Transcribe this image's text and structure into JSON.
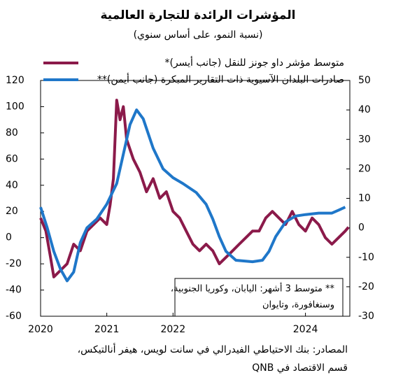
{
  "chart_data": {
    "type": "line",
    "title": "المؤشرات الرائدة للتجارة العالمية",
    "subtitle": "(نسبة النمو، على أساس سنوي)",
    "note": [
      "** متوسط 3 أشهر: اليابان، وكوريا الجنوبية،",
      "وسنغافورة، وتايوان"
    ],
    "source": [
      "المصادر: بنك الاحتياطي الفيدرالي في سانت لويس، هيفر أنالتيكس،",
      "قسم الاقتصاد في QNB"
    ],
    "xlim": [
      2020,
      2024.67
    ],
    "xticks": [
      2020,
      2021,
      2022,
      2024
    ],
    "ylim": [
      -60,
      120
    ],
    "yticks": [
      -60,
      -40,
      -20,
      0,
      20,
      40,
      60,
      80,
      100,
      120
    ],
    "y2lim": [
      -30,
      50
    ],
    "y2ticks": [
      -30,
      -20,
      -10,
      0,
      10,
      20,
      30,
      40,
      50
    ],
    "grid": false,
    "series": [
      {
        "name": "متوسط مؤشر داو جونز للنقل (جانب أيسر)*",
        "color": "#8b1a4a",
        "x": [
          2020,
          2020.08,
          2020.15,
          2020.2,
          2020.3,
          2020.4,
          2020.5,
          2020.6,
          2020.7,
          2020.8,
          2020.9,
          2021,
          2021.05,
          2021.1,
          2021.15,
          2021.2,
          2021.25,
          2021.3,
          2021.4,
          2021.5,
          2021.6,
          2021.7,
          2021.8,
          2021.9,
          2022,
          2022.1,
          2022.2,
          2022.3,
          2022.4,
          2022.5,
          2022.6,
          2022.7,
          2022.8,
          2022.9,
          2023,
          2023.1,
          2023.2,
          2023.3,
          2023.4,
          2023.5,
          2023.6,
          2023.7,
          2023.8,
          2023.9,
          2024,
          2024.1,
          2024.2,
          2024.3,
          2024.4,
          2024.5,
          2024.6,
          2024.65
        ],
        "values": [
          15,
          5,
          -15,
          -30,
          -25,
          -20,
          -5,
          -10,
          5,
          10,
          15,
          10,
          25,
          45,
          105,
          90,
          100,
          75,
          60,
          50,
          35,
          45,
          30,
          35,
          20,
          15,
          5,
          -5,
          -10,
          -5,
          -10,
          -20,
          -15,
          -10,
          -5,
          0,
          5,
          5,
          15,
          20,
          15,
          10,
          20,
          10,
          5,
          15,
          10,
          0,
          -5,
          0,
          5,
          8
        ]
      },
      {
        "name": "صادرات البلدان الآسيوية ذات التقارير المبكرة (جانب أيمن)**",
        "color": "#1f77c9",
        "axis": "y2",
        "x": [
          2020,
          2020.1,
          2020.2,
          2020.3,
          2020.4,
          2020.5,
          2020.6,
          2020.7,
          2020.85,
          2021,
          2021.15,
          2021.25,
          2021.35,
          2021.45,
          2021.55,
          2021.7,
          2021.85,
          2022,
          2022.15,
          2022.35,
          2022.5,
          2022.6,
          2022.7,
          2022.8,
          2022.95,
          2023.2,
          2023.35,
          2023.45,
          2023.55,
          2023.7,
          2023.85,
          2024,
          2024.2,
          2024.4,
          2024.5,
          2024.6
        ],
        "values": [
          7,
          0,
          -8,
          -14,
          -18,
          -15,
          -5,
          0,
          3,
          8,
          15,
          25,
          35,
          40,
          37,
          27,
          20,
          17,
          15,
          12,
          8,
          3,
          -3,
          -8,
          -11,
          -11.5,
          -11,
          -8,
          -3,
          2,
          4,
          4.5,
          5,
          5,
          6,
          7
        ]
      }
    ]
  }
}
